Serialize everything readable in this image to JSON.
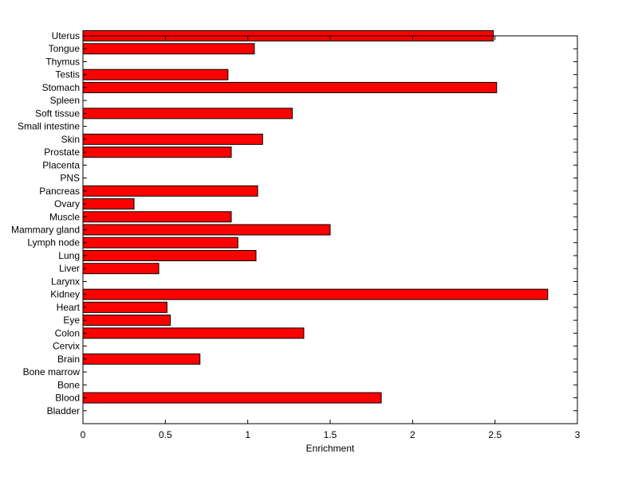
{
  "chart_data": {
    "type": "bar",
    "orientation": "horizontal",
    "title": "",
    "xlabel": "Enrichment",
    "ylabel": "",
    "xlim": [
      0,
      3
    ],
    "ylim": [
      0,
      30
    ],
    "grid": false,
    "bar_color": "#ff0000",
    "edge_color": "#000000",
    "xticks": [
      "0",
      "0.5",
      "1",
      "1.5",
      "2",
      "2.5",
      "3"
    ],
    "xtick_values": [
      0,
      0.5,
      1,
      1.5,
      2,
      2.5,
      3
    ],
    "categories": [
      "Bladder",
      "Blood",
      "Bone",
      "Bone marrow",
      "Brain",
      "Cervix",
      "Colon",
      "Eye",
      "Heart",
      "Kidney",
      "Larynx",
      "Liver",
      "Lung",
      "Lymph node",
      "Mammary gland",
      "Muscle",
      "Ovary",
      "Pancreas",
      "PNS",
      "Placenta",
      "Prostate",
      "Skin",
      "Small intestine",
      "Soft tissue",
      "Spleen",
      "Stomach",
      "Testis",
      "Thymus",
      "Tongue",
      "Uterus"
    ],
    "values": [
      0,
      1.81,
      0,
      0,
      0.71,
      0,
      1.34,
      0.53,
      0.51,
      2.82,
      0,
      0.46,
      1.05,
      0.94,
      1.5,
      0.9,
      0.31,
      1.06,
      0,
      0,
      0.9,
      1.09,
      0,
      1.27,
      0,
      2.51,
      0.88,
      0,
      1.04,
      2.49
    ]
  }
}
